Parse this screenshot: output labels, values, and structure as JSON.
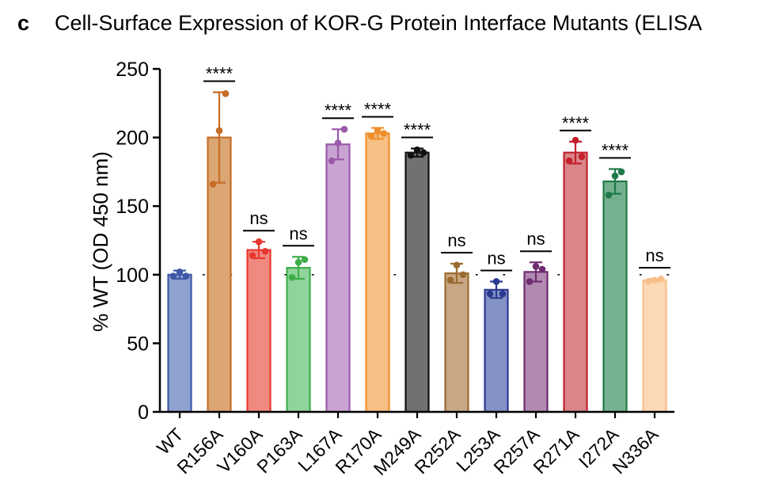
{
  "figure": {
    "panel_letter": "c",
    "title": "Cell-Surface Expression of KOR-G Protein Interface Mutants (ELISA"
  },
  "chart_data": {
    "type": "bar",
    "title": "Cell-Surface Expression of KOR-G Protein Interface Mutants (ELISA",
    "xlabel": "",
    "ylabel": "% WT (OD 450 nm)",
    "ylim": [
      0,
      250
    ],
    "yticks": [
      0,
      50,
      100,
      150,
      200,
      250
    ],
    "reference_line": {
      "y": 100,
      "style": "dotted"
    },
    "grid": false,
    "categories": [
      "WT",
      "R156A",
      "V160A",
      "P163A",
      "L167A",
      "R170A",
      "M249A",
      "R252A",
      "L253A",
      "R257A",
      "R271A",
      "I272A",
      "N336A"
    ],
    "values": [
      100,
      200,
      118,
      105,
      195,
      203,
      189,
      101,
      89,
      102,
      189,
      168,
      96
    ],
    "error": [
      3,
      33,
      6,
      8,
      11,
      4,
      3,
      7,
      6,
      7,
      8,
      9,
      1
    ],
    "points": [
      [
        99,
        102,
        99
      ],
      [
        166,
        205,
        232
      ],
      [
        114,
        124,
        117
      ],
      [
        98,
        109,
        111
      ],
      [
        183,
        196,
        206
      ],
      [
        201,
        205,
        203
      ],
      [
        187,
        191,
        189
      ],
      [
        96,
        107,
        100
      ],
      [
        86,
        95,
        86
      ],
      [
        95,
        106,
        104
      ],
      [
        183,
        198,
        186
      ],
      [
        158,
        172,
        175
      ],
      [
        95,
        96,
        97
      ]
    ],
    "significance": [
      "",
      "****",
      "ns",
      "ns",
      "****",
      "****",
      "****",
      "ns",
      "ns",
      "ns",
      "****",
      "****",
      "ns"
    ],
    "colors": {
      "fill": [
        "#8fa2cf",
        "#dba574",
        "#f08a80",
        "#8fd49a",
        "#c8a4d2",
        "#f6bf84",
        "#717171",
        "#c7a784",
        "#8592c6",
        "#b18ab1",
        "#d9858a",
        "#75b08f",
        "#fbd9b4"
      ],
      "stroke": [
        "#3f58a6",
        "#c56d27",
        "#e8372f",
        "#3fae4a",
        "#9b5aa9",
        "#f08f2a",
        "#111111",
        "#9a6b30",
        "#2a3a8f",
        "#6f2c6f",
        "#c2202b",
        "#1e7a48",
        "#f6c08c"
      ]
    }
  }
}
